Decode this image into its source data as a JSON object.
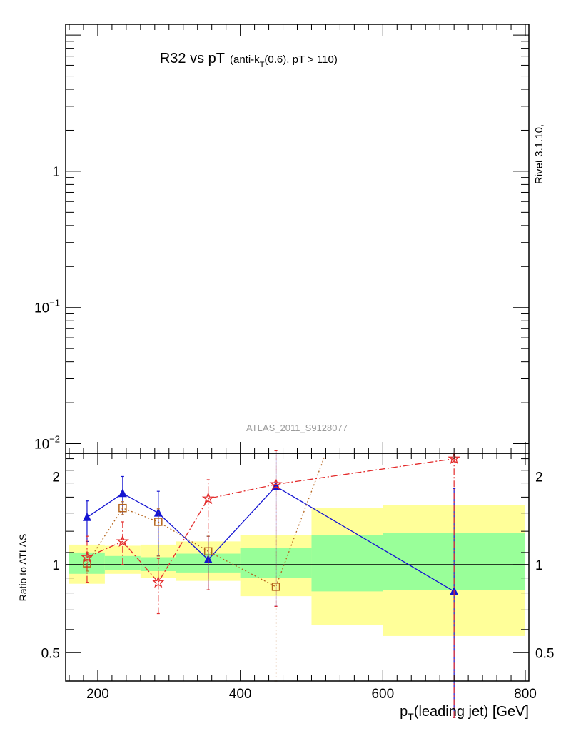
{
  "chart_data": [
    {
      "type": "line",
      "panel": "main",
      "title_main": "R32 vs pT",
      "title_sub_1": "(anti-k",
      "title_sub_T": "T",
      "title_sub_2": "(0.6), pT > 110)",
      "watermark": "ATLAS_2011_S9128077",
      "side_label": "Rivet 3.1.10,",
      "yscale": "log",
      "ylim": [
        0.0085,
        12
      ],
      "xlim": [
        155,
        805
      ],
      "y_tick_labels": [
        {
          "value": 1,
          "base": "1",
          "exp": ""
        },
        {
          "value": 0.1,
          "base": "10",
          "exp": "−1"
        },
        {
          "value": 0.01,
          "base": "10",
          "exp": "−2"
        }
      ],
      "series": []
    },
    {
      "type": "line",
      "panel": "ratio",
      "ylabel": "Ratio to ATLAS",
      "xlabel_p": "p",
      "xlabel_T": "T",
      "xlabel_rest": "(leading jet) [GeV]",
      "yscale": "log",
      "ylim": [
        0.4,
        2.4
      ],
      "xlim": [
        155,
        805
      ],
      "x_ticks": [
        200,
        400,
        600,
        800
      ],
      "x_tick_labels": [
        "200",
        "400",
        "600",
        "800"
      ],
      "y_ticks": [
        0.5,
        1,
        2
      ],
      "y_tick_labels": [
        "0.5",
        "1",
        "2"
      ],
      "reference_line": 1,
      "bands": [
        {
          "x": [
            160,
            210
          ],
          "yellow": [
            0.86,
            1.17
          ],
          "green": [
            0.93,
            1.1
          ]
        },
        {
          "x": [
            210,
            260
          ],
          "yellow": [
            0.93,
            1.16
          ],
          "green": [
            0.96,
            1.07
          ]
        },
        {
          "x": [
            260,
            310
          ],
          "yellow": [
            0.9,
            1.17
          ],
          "green": [
            0.95,
            1.06
          ]
        },
        {
          "x": [
            310,
            400
          ],
          "yellow": [
            0.88,
            1.2
          ],
          "green": [
            0.94,
            1.09
          ]
        },
        {
          "x": [
            400,
            500
          ],
          "yellow": [
            0.78,
            1.26
          ],
          "green": [
            0.9,
            1.14
          ]
        },
        {
          "x": [
            500,
            600
          ],
          "yellow": [
            0.62,
            1.56
          ],
          "green": [
            0.81,
            1.26
          ]
        },
        {
          "x": [
            600,
            800
          ],
          "yellow": [
            0.57,
            1.6
          ],
          "green": [
            0.82,
            1.28
          ]
        }
      ],
      "series": [
        {
          "marker": "triangle",
          "color": "#1414d2",
          "dash": "",
          "x": [
            185,
            235,
            285,
            355,
            450,
            700
          ],
          "y": [
            1.45,
            1.75,
            1.5,
            1.04,
            1.85,
            0.81
          ],
          "err_lo": [
            1.2,
            1.48,
            1.07,
            0.82,
            0.72,
            0.3
          ],
          "err_hi": [
            1.65,
            2.0,
            1.78,
            1.25,
            2.45,
            1.82
          ]
        },
        {
          "marker": "square",
          "color": "#b5651d",
          "dash": "2 3",
          "x": [
            185,
            235,
            285,
            355,
            450,
            520
          ],
          "y": [
            1.01,
            1.56,
            1.4,
            1.11,
            0.84,
            2.4
          ],
          "err_lo": [
            0.95,
            1.48,
            1.07,
            0.82,
            0.4,
            null
          ],
          "err_hi": [
            1.1,
            1.64,
            1.55,
            1.25,
            2.45,
            null
          ],
          "marker_count": 5
        },
        {
          "marker": "star",
          "color": "#e32a2a",
          "dash": "9 3 2 3",
          "x": [
            185,
            235,
            285,
            355,
            450,
            700
          ],
          "y": [
            1.06,
            1.2,
            0.87,
            1.68,
            1.88,
            2.3
          ],
          "err_lo": [
            0.87,
            1.0,
            0.68,
            0.82,
            0.72,
            0.3
          ],
          "err_hi": [
            1.25,
            1.4,
            1.05,
            1.95,
            2.45,
            2.4
          ]
        }
      ]
    }
  ]
}
